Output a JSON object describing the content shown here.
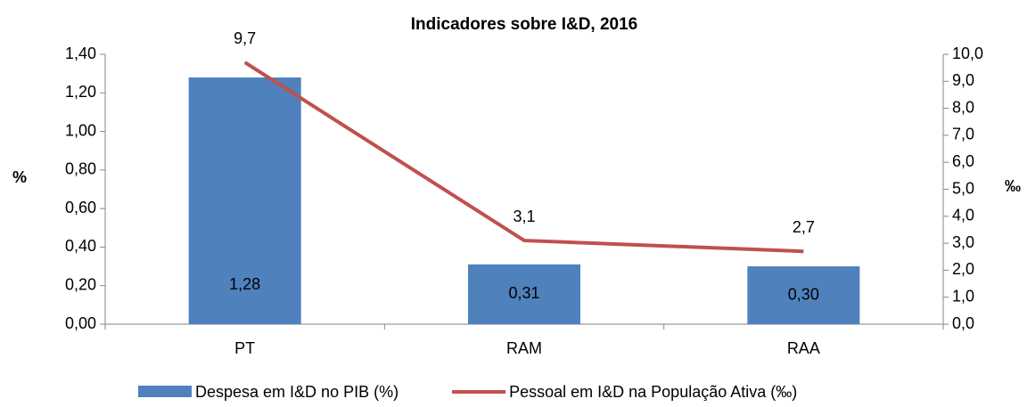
{
  "chart_data": {
    "type": "bar",
    "title": "Indicadores sobre I&D, 2016",
    "categories": [
      "PT",
      "RAM",
      "RAA"
    ],
    "series": [
      {
        "name": "Despesa em I&D no PIB (%)",
        "type": "bar",
        "color": "#4f81bd",
        "values": [
          1.28,
          0.31,
          0.3
        ],
        "value_labels": [
          "1,28",
          "0,31",
          "0,30"
        ]
      },
      {
        "name": "Pessoal em I&D na População Ativa (‰)",
        "type": "line",
        "axis": "y2",
        "color": "#c0504d",
        "values": [
          9.7,
          3.1,
          2.7
        ],
        "value_labels": [
          "9,7",
          "3,1",
          "2,7"
        ]
      }
    ],
    "ylabel": "%",
    "y2label": "‰",
    "ylim": [
      0,
      1.4
    ],
    "yticks": [
      {
        "value": 0,
        "label": "0,00"
      },
      {
        "value": 0.2,
        "label": "0,20"
      },
      {
        "value": 0.4,
        "label": "0,40"
      },
      {
        "value": 0.6,
        "label": "0,60"
      },
      {
        "value": 0.8,
        "label": "0,80"
      },
      {
        "value": 1.0,
        "label": "1,00"
      },
      {
        "value": 1.2,
        "label": "1,20"
      },
      {
        "value": 1.4,
        "label": "1,40"
      }
    ],
    "y2lim": [
      0,
      10
    ],
    "y2ticks": [
      {
        "value": 0,
        "label": "0,0"
      },
      {
        "value": 1,
        "label": "1,0"
      },
      {
        "value": 2,
        "label": "2,0"
      },
      {
        "value": 3,
        "label": "3,0"
      },
      {
        "value": 4,
        "label": "4,0"
      },
      {
        "value": 5,
        "label": "5,0"
      },
      {
        "value": 6,
        "label": "6,0"
      },
      {
        "value": 7,
        "label": "7,0"
      },
      {
        "value": 8,
        "label": "8,0"
      },
      {
        "value": 9,
        "label": "9,0"
      },
      {
        "value": 10,
        "label": "10,0"
      }
    ],
    "grid": false,
    "legend": "bottom"
  }
}
